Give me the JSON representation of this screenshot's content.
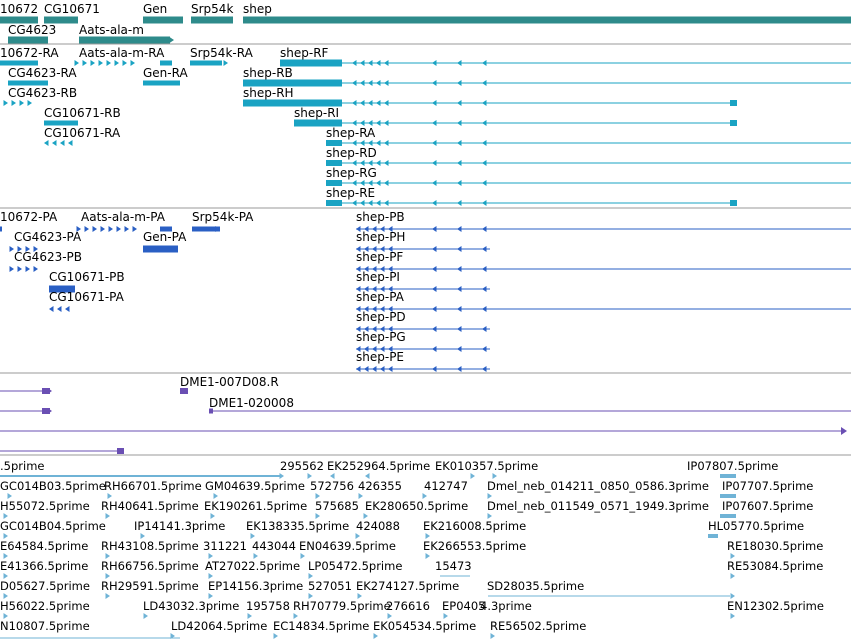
{
  "colors": {
    "gene": "#2e8b8b",
    "mrna": "#1aa3c3",
    "protein": "#2a5fc4",
    "probe": "#6a4fb3",
    "est": "#6fb3d6",
    "divider": "#9a9a9a"
  },
  "gene_track": {
    "labels": [
      "10672",
      "CG10671",
      "Gen",
      "Srp54k",
      "shep",
      "CG4623",
      "Aats-ala-m"
    ]
  },
  "mrna_track": {
    "labels": [
      "10672-RA",
      "Aats-ala-m-RA",
      "Srp54k-RA",
      "shep-RF",
      "CG4623-RA",
      "Gen-RA",
      "shep-RB",
      "CG4623-RB",
      "shep-RH",
      "CG10671-RB",
      "shep-RI",
      "CG10671-RA",
      "shep-RA",
      "shep-RD",
      "shep-RG",
      "shep-RE"
    ]
  },
  "protein_track": {
    "labels": [
      "10672-PA",
      "Aats-ala-m-PA",
      "Srp54k-PA",
      "CG4623-PA",
      "Gen-PA",
      "shep-PB",
      "CG4623-PB",
      "shep-PH",
      "shep-PF",
      "CG10671-PB",
      "shep-PI",
      "CG10671-PA",
      "shep-PA",
      "shep-PD",
      "shep-PG",
      "shep-PE"
    ]
  },
  "probe_track": {
    "labels": [
      "DME1-007D08.R",
      "DME1-020008"
    ]
  },
  "est_track": {
    "labels": [
      ".5prime",
      "295562",
      "EK252964.5prime",
      "EK010357.5prime",
      "IP07807.5prime",
      "GC014B03.5prime",
      "RH66701.5prime",
      "GM04639.5prime",
      "572756",
      "426355",
      "412747",
      "Dmel_neb_014211_0850_0586.3prime",
      "IP07707.5prime",
      "H55072.5prime",
      "RH40641.5prime",
      "EK190261.5prime",
      "575685",
      "EK280650.5prime",
      "Dmel_neb_011549_0571_1949.3prime",
      "IP07607.5prime",
      "GC014B04.5prime",
      "IP14141.3prime",
      "EK138335.5prime",
      "424088",
      "EK216008.5prime",
      "HL05770.5prime",
      "E64584.5prime",
      "RH43108.5prime",
      "311221",
      "443044",
      "EN04639.5prime",
      "EK266553.5prime",
      "RE18030.5prime",
      "E41366.5prime",
      "RH66756.5prime",
      "AT27022.5prime",
      "LP05472.5prime",
      "15473",
      "RE53084.5prime",
      "D05627.5prime",
      "RH29591.5prime",
      "EP14156.3prime",
      "527051",
      "EK274127.5prime",
      "SD28035.5prime",
      "H56022.5prime",
      "LD43032.3prime",
      "195758",
      "RH70779.5prime",
      "276616",
      "EP0405",
      "4.3prime",
      "EN12302.5prime",
      "N10807.5prime",
      "LD42064.5prime",
      "EC14834.5prime",
      "EK054534.5prime",
      "RE56502.5prime"
    ]
  }
}
